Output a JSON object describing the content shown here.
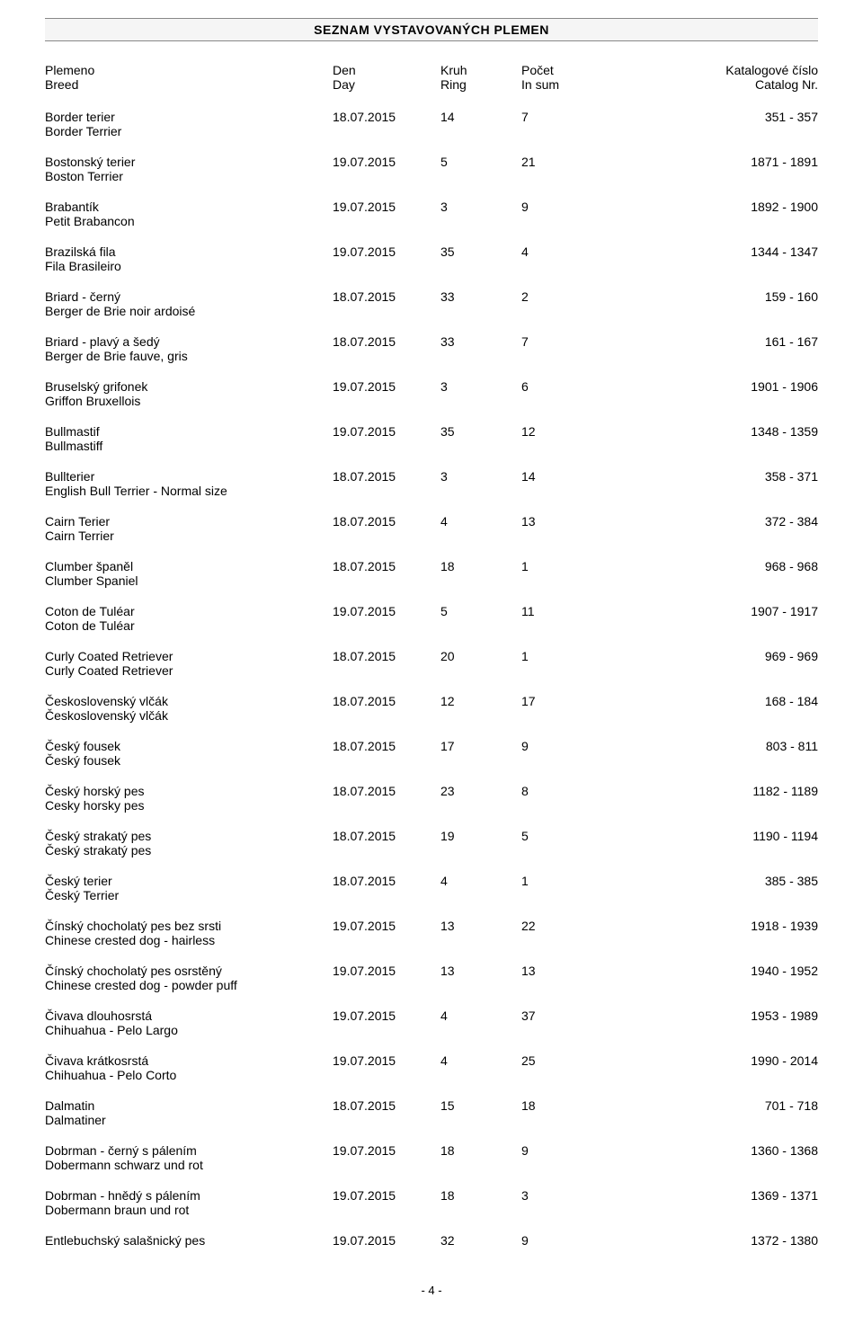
{
  "title": "SEZNAM VYSTAVOVANÝCH PLEMEN",
  "header": {
    "breed_cz": "Plemeno",
    "breed_en": "Breed",
    "day_cz": "Den",
    "day_en": "Day",
    "ring_cz": "Kruh",
    "ring_en": "Ring",
    "sum_cz": "Počet",
    "sum_en": "In sum",
    "cat_cz": "Katalogové číslo",
    "cat_en": "Catalog Nr."
  },
  "rows": [
    {
      "cz": "Border terier",
      "en": "Border Terrier",
      "day": "18.07.2015",
      "ring": "14",
      "sum": "7",
      "cat": "351 - 357"
    },
    {
      "cz": "Bostonský terier",
      "en": "Boston Terrier",
      "day": "19.07.2015",
      "ring": "5",
      "sum": "21",
      "cat": "1871 - 1891"
    },
    {
      "cz": "Brabantík",
      "en": "Petit Brabancon",
      "day": "19.07.2015",
      "ring": "3",
      "sum": "9",
      "cat": "1892 - 1900"
    },
    {
      "cz": "Brazilská fila",
      "en": "Fila Brasileiro",
      "day": "19.07.2015",
      "ring": "35",
      "sum": "4",
      "cat": "1344 - 1347"
    },
    {
      "cz": "Briard - černý",
      "en": "Berger de Brie noir ardoisé",
      "day": "18.07.2015",
      "ring": "33",
      "sum": "2",
      "cat": "159 - 160"
    },
    {
      "cz": "Briard - plavý a šedý",
      "en": "Berger de Brie fauve, gris",
      "day": "18.07.2015",
      "ring": "33",
      "sum": "7",
      "cat": "161 - 167"
    },
    {
      "cz": "Bruselský grifonek",
      "en": "Griffon Bruxellois",
      "day": "19.07.2015",
      "ring": "3",
      "sum": "6",
      "cat": "1901 - 1906"
    },
    {
      "cz": "Bullmastif",
      "en": "Bullmastiff",
      "day": "19.07.2015",
      "ring": "35",
      "sum": "12",
      "cat": "1348 - 1359"
    },
    {
      "cz": "Bullterier",
      "en": "English Bull Terrier - Normal size",
      "day": "18.07.2015",
      "ring": "3",
      "sum": "14",
      "cat": "358 - 371"
    },
    {
      "cz": "Cairn Terier",
      "en": "Cairn Terrier",
      "day": "18.07.2015",
      "ring": "4",
      "sum": "13",
      "cat": "372 - 384"
    },
    {
      "cz": "Clumber španěl",
      "en": "Clumber Spaniel",
      "day": "18.07.2015",
      "ring": "18",
      "sum": "1",
      "cat": "968 - 968"
    },
    {
      "cz": "Coton de Tuléar",
      "en": "Coton de Tuléar",
      "day": "19.07.2015",
      "ring": "5",
      "sum": "11",
      "cat": "1907 - 1917"
    },
    {
      "cz": "Curly Coated Retriever",
      "en": "Curly Coated Retriever",
      "day": "18.07.2015",
      "ring": "20",
      "sum": "1",
      "cat": "969 - 969"
    },
    {
      "cz": "Československý vlčák",
      "en": "Československý vlčák",
      "day": "18.07.2015",
      "ring": "12",
      "sum": "17",
      "cat": "168 - 184"
    },
    {
      "cz": "Český fousek",
      "en": "Český fousek",
      "day": "18.07.2015",
      "ring": "17",
      "sum": "9",
      "cat": "803 - 811"
    },
    {
      "cz": "Český horský pes",
      "en": "Cesky horsky pes",
      "day": "18.07.2015",
      "ring": "23",
      "sum": "8",
      "cat": "1182 - 1189"
    },
    {
      "cz": "Český strakatý pes",
      "en": "Český strakatý pes",
      "day": "18.07.2015",
      "ring": "19",
      "sum": "5",
      "cat": "1190 - 1194"
    },
    {
      "cz": "Český terier",
      "en": "Český Terrier",
      "day": "18.07.2015",
      "ring": "4",
      "sum": "1",
      "cat": "385 - 385"
    },
    {
      "cz": "Čínský chocholatý pes bez srsti",
      "en": "Chinese crested dog - hairless",
      "day": "19.07.2015",
      "ring": "13",
      "sum": "22",
      "cat": "1918 - 1939"
    },
    {
      "cz": "Čínský chocholatý pes osrstěný",
      "en": "Chinese crested dog - powder puff",
      "day": "19.07.2015",
      "ring": "13",
      "sum": "13",
      "cat": "1940 - 1952"
    },
    {
      "cz": "Čivava dlouhosrstá",
      "en": "Chihuahua - Pelo Largo",
      "day": "19.07.2015",
      "ring": "4",
      "sum": "37",
      "cat": "1953 - 1989"
    },
    {
      "cz": "Čivava krátkosrstá",
      "en": "Chihuahua - Pelo Corto",
      "day": "19.07.2015",
      "ring": "4",
      "sum": "25",
      "cat": "1990 - 2014"
    },
    {
      "cz": "Dalmatin",
      "en": "Dalmatiner",
      "day": "18.07.2015",
      "ring": "15",
      "sum": "18",
      "cat": "701 - 718"
    },
    {
      "cz": "Dobrman - černý s pálením",
      "en": "Dobermann schwarz und rot",
      "day": "19.07.2015",
      "ring": "18",
      "sum": "9",
      "cat": "1360 - 1368"
    },
    {
      "cz": "Dobrman - hnědý s pálením",
      "en": "Dobermann braun und rot",
      "day": "19.07.2015",
      "ring": "18",
      "sum": "3",
      "cat": "1369 - 1371"
    },
    {
      "cz": "Entlebuchský salašnický pes",
      "en": "",
      "day": "19.07.2015",
      "ring": "32",
      "sum": "9",
      "cat": "1372 - 1380"
    }
  ],
  "page_number": "- 4 -"
}
